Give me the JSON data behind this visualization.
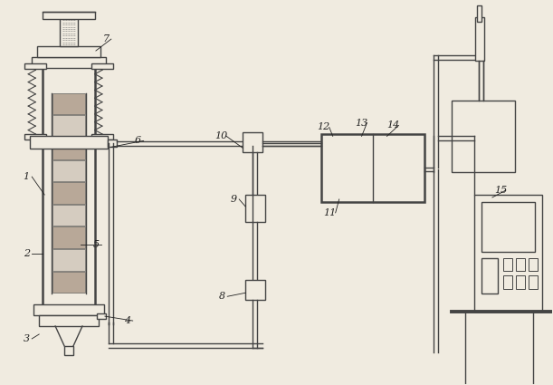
{
  "bg_color": "#f0ebe0",
  "line_color": "#444444",
  "lw": 1.0,
  "tlw": 1.8,
  "layer_colors": [
    "#b8a898",
    "#d5ccc0",
    "#b8a898",
    "#d5ccc0",
    "#b8a898",
    "#d5ccc0",
    "#b8a898",
    "#d5ccc0"
  ],
  "label_fontsize": 8,
  "label_color": "#222222"
}
